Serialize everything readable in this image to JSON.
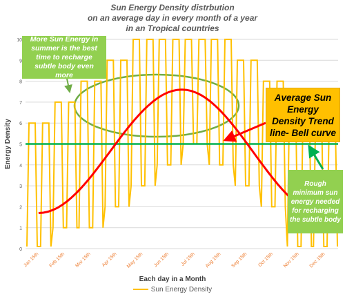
{
  "chart_data": {
    "type": "line",
    "title_lines": [
      "Sun Energy Density distrbution",
      "on an average day in every month of a year",
      "in an Tropical countries"
    ],
    "xlabel": "Each day in a Month",
    "ylabel": "Energy Density",
    "ylim": [
      0,
      10
    ],
    "yticks": [
      0,
      1,
      2,
      3,
      4,
      5,
      6,
      7,
      8,
      9,
      10
    ],
    "categories": [
      "Jan 15th",
      "Feb 15th",
      "Mar 15th",
      "Apr 15th",
      "May 15th",
      "Jun 15th",
      "Jul 15th",
      "Aug 15th",
      "Sep 15th",
      "Oct 15th",
      "Nov 15th",
      "Dec 15th"
    ],
    "series": [
      {
        "name": "Sun Energy Density",
        "color": "#ffc000",
        "monthly_peaks": [
          6,
          7,
          8,
          9,
          10,
          10,
          10,
          10,
          9,
          8,
          7,
          6
        ],
        "monthly_plateaus": [
          [
            6,
            0.1
          ],
          [
            7,
            1
          ],
          [
            8,
            1
          ],
          [
            9,
            2
          ],
          [
            10,
            3
          ],
          [
            10,
            4
          ],
          [
            10,
            5
          ],
          [
            10,
            4
          ],
          [
            9,
            3
          ],
          [
            8,
            2
          ],
          [
            7,
            0.1
          ],
          [
            6,
            0.1
          ]
        ]
      }
    ],
    "trend_line": {
      "label": "Average Sun Energy Density Trend line- Bell curve",
      "color": "#ff0000",
      "start": 1.7,
      "peak": 7.6,
      "end": 1.6
    },
    "threshold_line": {
      "value": 5,
      "color": "#00b050",
      "label": "Rough minimum sun energy needed for recharging the subtle body"
    },
    "summer_ellipse": {
      "color": "#70ad47",
      "label": "More Sun Energy in summer is the best time to recharge subtle body even more"
    },
    "legend": "Sun Energy Density",
    "grid": true
  }
}
